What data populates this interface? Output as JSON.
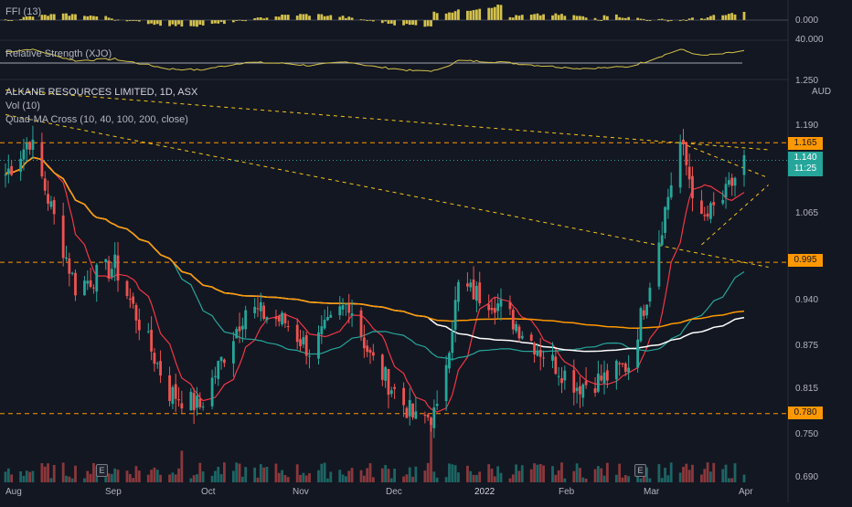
{
  "header": {
    "symbol_title": "ALKANE RESOURCES LIMITED, 1D, ASX",
    "vol_label": "Vol (10)",
    "ma_label": "Quad-MA Cross (10, 40, 100, 200, close)"
  },
  "panes": {
    "ffi": {
      "label": "FFI (13)",
      "axis_value": "0.000"
    },
    "rs": {
      "label": "Relative Strength (XJO)",
      "axis_top": "40.000",
      "axis_bottom": "1.250"
    }
  },
  "price_axis": {
    "currency": "AUD",
    "ticks": [
      "1.190",
      "1.065",
      "0.940",
      "0.875",
      "0.815",
      "0.750",
      "0.690"
    ],
    "tags": [
      {
        "label": "1.165",
        "kind": "level"
      },
      {
        "label": "0.995",
        "kind": "level"
      },
      {
        "label": "0.780",
        "kind": "level"
      }
    ],
    "last_price": {
      "price": "1.140",
      "countdown": "11:25"
    }
  },
  "time_axis": [
    "Aug",
    "Sep",
    "Oct",
    "Nov",
    "Dec",
    "2022",
    "Feb",
    "Mar",
    "Apr"
  ],
  "events": [
    "E",
    "E"
  ],
  "colors": {
    "background": "#131722",
    "up": "#26a69a",
    "down": "#ef5350",
    "ma10": "#f23645",
    "ma40": "#26a69a",
    "ma100": "#ffffff",
    "ma200": "#ff9800",
    "level_line": "#ff9800",
    "trendline": "#f5c518",
    "ffi": "#d4c14b",
    "rs_line": "#d4c14b"
  },
  "chart_data": {
    "type": "candlestick",
    "title": "ALKANE RESOURCES LIMITED, 1D, ASX",
    "ylim": [
      0.68,
      1.25
    ],
    "horizontal_levels": [
      1.165,
      0.995,
      0.78
    ],
    "key_points": [
      {
        "date": "2021-07-28",
        "close": 1.12
      },
      {
        "date": "2021-08-05",
        "close": 1.17
      },
      {
        "date": "2021-08-20",
        "close": 0.96
      },
      {
        "date": "2021-09-02",
        "close": 0.99
      },
      {
        "date": "2021-09-20",
        "close": 0.81
      },
      {
        "date": "2021-09-30",
        "close": 0.79
      },
      {
        "date": "2021-10-15",
        "close": 0.93
      },
      {
        "date": "2021-10-28",
        "close": 0.91
      },
      {
        "date": "2021-11-05",
        "close": 0.87
      },
      {
        "date": "2021-11-18",
        "close": 0.94
      },
      {
        "date": "2021-11-25",
        "close": 0.86
      },
      {
        "date": "2021-12-10",
        "close": 0.77
      },
      {
        "date": "2021-12-17",
        "close": 0.78
      },
      {
        "date": "2021-12-24",
        "close": 0.96
      },
      {
        "date": "2022-01-05",
        "close": 0.94
      },
      {
        "date": "2022-01-20",
        "close": 0.87
      },
      {
        "date": "2022-02-01",
        "close": 0.82
      },
      {
        "date": "2022-02-10",
        "close": 0.83
      },
      {
        "date": "2022-02-18",
        "close": 0.85
      },
      {
        "date": "2022-02-24",
        "close": 0.95
      },
      {
        "date": "2022-03-03",
        "close": 1.09
      },
      {
        "date": "2022-03-07",
        "close": 1.165
      },
      {
        "date": "2022-03-14",
        "close": 1.05
      },
      {
        "date": "2022-03-22",
        "close": 1.09
      },
      {
        "date": "2022-03-28",
        "close": 1.14
      }
    ],
    "moving_averages": [
      {
        "name": "MA10"
      },
      {
        "name": "MA40"
      },
      {
        "name": "MA100"
      },
      {
        "name": "MA200"
      }
    ]
  }
}
